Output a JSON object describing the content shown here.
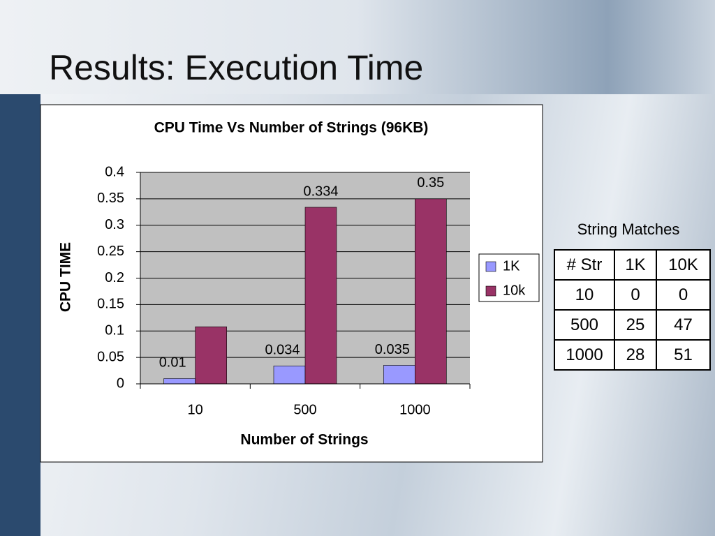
{
  "title": "Results: Execution Time",
  "chart_data": {
    "type": "bar",
    "title": "CPU Time Vs Number of Strings (96KB)",
    "x_label": "Number of Strings",
    "y_label": "CPU TIME",
    "categories": [
      "10",
      "500",
      "1000"
    ],
    "series": [
      {
        "name": "1K",
        "color": "#9999ff",
        "values": [
          0.01,
          0.034,
          0.035
        ],
        "show_labels": [
          true,
          true,
          true
        ]
      },
      {
        "name": "10k",
        "color": "#993366",
        "values": [
          0.108,
          0.334,
          0.35
        ],
        "show_labels": [
          false,
          true,
          true
        ]
      }
    ],
    "ylim": [
      0,
      0.4
    ],
    "yticks": [
      0,
      0.05,
      0.1,
      0.15,
      0.2,
      0.25,
      0.3,
      0.35,
      0.4
    ],
    "grid": true,
    "legend": "right"
  },
  "table": {
    "caption": "String Matches",
    "header": [
      "# Str",
      "1K",
      "10K"
    ],
    "rows": [
      [
        10,
        0,
        0
      ],
      [
        500,
        25,
        47
      ],
      [
        1000,
        28,
        51
      ]
    ]
  }
}
